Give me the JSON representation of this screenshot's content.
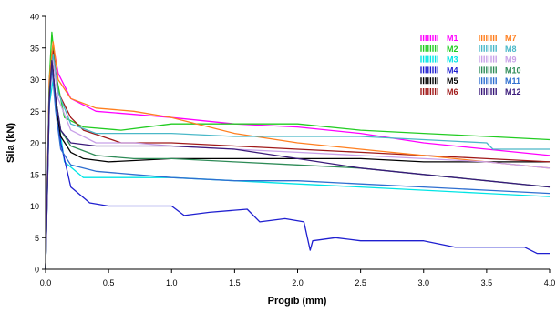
{
  "chart_data": {
    "type": "line",
    "title": "",
    "xlabel": "Progib (mm)",
    "ylabel": "Sila (kN)",
    "xlim": [
      0,
      4
    ],
    "ylim": [
      0,
      40
    ],
    "x_ticks": [
      "0.0",
      "0.5",
      "1.0",
      "1.5",
      "2.0",
      "2.5",
      "3.0",
      "3.5",
      "4.0"
    ],
    "y_ticks": [
      "0",
      "5",
      "10",
      "15",
      "20",
      "25",
      "30",
      "35",
      "40"
    ],
    "grid": false,
    "legend_position": "top-right",
    "series": [
      {
        "name": "M1",
        "color": "#ff00ff",
        "x": [
          0,
          0.03,
          0.06,
          0.1,
          0.2,
          0.4,
          0.7,
          1.0,
          1.5,
          2.0,
          2.5,
          3.0,
          3.5,
          4.0
        ],
        "y": [
          0,
          30,
          35.5,
          31,
          27,
          25,
          24.5,
          24,
          23,
          22.5,
          21.5,
          20,
          19,
          18
        ]
      },
      {
        "name": "M2",
        "color": "#22cc22",
        "x": [
          0,
          0.03,
          0.05,
          0.08,
          0.15,
          0.3,
          0.6,
          1.0,
          1.5,
          2.0,
          2.5,
          3.0,
          3.5,
          4.0
        ],
        "y": [
          0,
          30,
          37.5,
          31,
          24,
          22.5,
          22,
          23,
          23,
          23,
          22,
          21.5,
          21,
          20.5
        ]
      },
      {
        "name": "M3",
        "color": "#00e5e5",
        "x": [
          0,
          0.03,
          0.06,
          0.1,
          0.15,
          0.3,
          0.6,
          1.0,
          1.5,
          2.0,
          2.5,
          3.0,
          3.5,
          4.0
        ],
        "y": [
          0,
          26,
          30,
          24,
          17,
          14.5,
          14.5,
          14.5,
          14,
          13.5,
          13,
          12.5,
          12,
          11.5
        ]
      },
      {
        "name": "M4",
        "color": "#1f1fd0",
        "x": [
          0,
          0.03,
          0.05,
          0.08,
          0.12,
          0.2,
          0.35,
          0.5,
          0.7,
          1.0,
          1.1,
          1.3,
          1.6,
          1.7,
          1.9,
          2.05,
          2.1,
          2.12,
          2.3,
          2.5,
          3.0,
          3.25,
          3.3,
          3.5,
          3.8,
          3.9,
          4.0
        ],
        "y": [
          0,
          26,
          33,
          27,
          20,
          13,
          10.5,
          10,
          10,
          10,
          8.5,
          9,
          9.5,
          7.5,
          8,
          7.5,
          3,
          4.5,
          5,
          4.5,
          4.5,
          3.5,
          3.5,
          3.5,
          3.5,
          2.5,
          2.5
        ]
      },
      {
        "name": "M5",
        "color": "#000000",
        "x": [
          0,
          0.03,
          0.05,
          0.08,
          0.12,
          0.2,
          0.3,
          0.5,
          1.0,
          1.5,
          2.0,
          2.5,
          3.0,
          3.5,
          4.0
        ],
        "y": [
          0,
          28,
          34,
          26,
          21,
          18.5,
          17.5,
          17,
          17.5,
          17.5,
          17.5,
          17.5,
          17,
          17,
          17
        ]
      },
      {
        "name": "M6",
        "color": "#a01a1a",
        "x": [
          0,
          0.03,
          0.06,
          0.1,
          0.2,
          0.3,
          0.6,
          1.0,
          1.5,
          2.0,
          2.5,
          3.0,
          3.5,
          4.0
        ],
        "y": [
          0,
          28,
          34.5,
          28,
          24,
          22,
          20,
          20,
          19.5,
          19,
          18.5,
          18,
          17.5,
          17
        ]
      },
      {
        "name": "M7",
        "color": "#ff7f1f",
        "x": [
          0,
          0.03,
          0.06,
          0.1,
          0.2,
          0.4,
          0.7,
          1.0,
          1.2,
          1.5,
          2.0,
          2.5,
          3.0,
          3.5,
          4.0
        ],
        "y": [
          0,
          30,
          36,
          30,
          27,
          25.5,
          25,
          24,
          23,
          21.5,
          20,
          19,
          18,
          17,
          16
        ]
      },
      {
        "name": "M8",
        "color": "#4ab8c8",
        "x": [
          0,
          0.03,
          0.06,
          0.1,
          0.2,
          0.4,
          0.7,
          1.0,
          1.5,
          2.0,
          2.5,
          3.0,
          3.5,
          3.55,
          4.0
        ],
        "y": [
          0,
          28,
          34,
          28,
          23,
          21.5,
          21.5,
          21.5,
          21,
          21,
          21,
          20.5,
          20,
          19,
          19
        ]
      },
      {
        "name": "M9",
        "color": "#c8a0e8",
        "x": [
          0,
          0.03,
          0.06,
          0.1,
          0.2,
          0.4,
          0.7,
          1.0,
          1.5,
          2.0,
          2.5,
          3.0,
          3.5,
          4.0
        ],
        "y": [
          0,
          27,
          33,
          27,
          22,
          20,
          20,
          19.5,
          19,
          18.5,
          18,
          17.5,
          17,
          16
        ]
      },
      {
        "name": "M10",
        "color": "#2e8b57",
        "x": [
          0,
          0.03,
          0.05,
          0.08,
          0.12,
          0.2,
          0.4,
          0.7,
          1.0,
          1.5,
          2.0,
          2.5,
          3.0,
          3.5,
          4.0
        ],
        "y": [
          0,
          28,
          33,
          27,
          22,
          19.5,
          18,
          17.5,
          17.5,
          17,
          16.5,
          16,
          15,
          14,
          13
        ]
      },
      {
        "name": "M11",
        "color": "#2f6fd0",
        "x": [
          0,
          0.03,
          0.05,
          0.08,
          0.12,
          0.2,
          0.4,
          0.7,
          1.0,
          1.5,
          2.0,
          2.5,
          3.0,
          3.5,
          4.0
        ],
        "y": [
          0,
          26,
          32,
          25,
          19,
          16.5,
          15.5,
          15,
          14.5,
          14,
          14,
          13.5,
          13,
          12.5,
          12
        ]
      },
      {
        "name": "M12",
        "color": "#3a1a7a",
        "x": [
          0,
          0.03,
          0.05,
          0.08,
          0.12,
          0.2,
          0.4,
          0.7,
          1.0,
          1.5,
          2.0,
          2.5,
          3.0,
          3.5,
          4.0
        ],
        "y": [
          0,
          27,
          33,
          27,
          22,
          20,
          19.5,
          19.5,
          19.5,
          19,
          17.5,
          16,
          15,
          14,
          13
        ]
      }
    ]
  }
}
